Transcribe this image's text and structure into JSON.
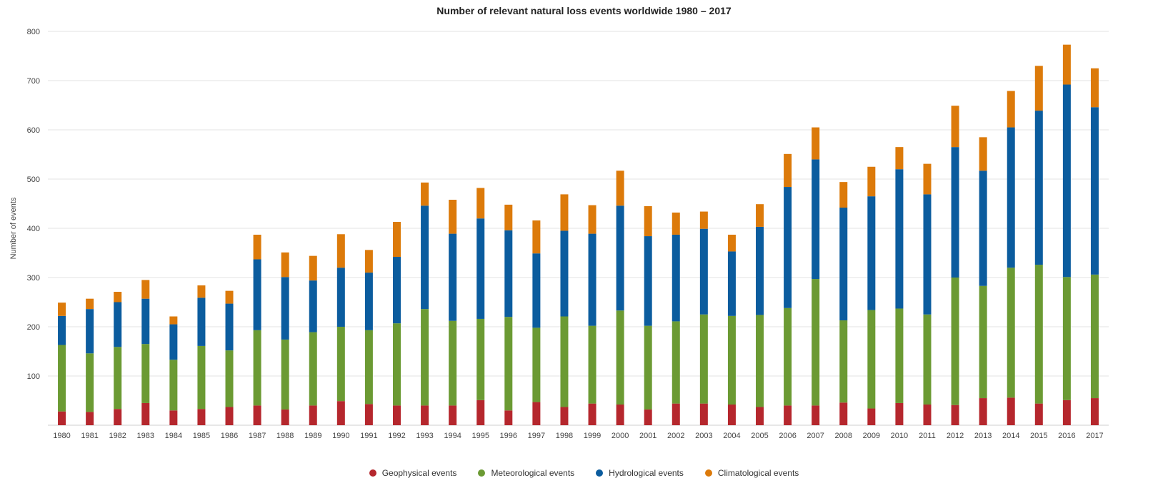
{
  "chart_data": {
    "type": "bar",
    "stacked": true,
    "title": "Number of relevant natural loss events worldwide 1980 – 2017",
    "xlabel": "",
    "ylabel": "Number of events",
    "ylim": [
      0,
      800
    ],
    "yticks": [
      100,
      200,
      300,
      400,
      500,
      600,
      700,
      800
    ],
    "grid": true,
    "legend_position": "bottom",
    "categories": [
      "1980",
      "1981",
      "1982",
      "1983",
      "1984",
      "1985",
      "1986",
      "1987",
      "1988",
      "1989",
      "1990",
      "1991",
      "1992",
      "1993",
      "1994",
      "1995",
      "1996",
      "1997",
      "1998",
      "1999",
      "2000",
      "2001",
      "2002",
      "2003",
      "2004",
      "2005",
      "2006",
      "2007",
      "2008",
      "2009",
      "2010",
      "2011",
      "2012",
      "2013",
      "2014",
      "2015",
      "2016",
      "2017"
    ],
    "series": [
      {
        "name": "Geophysical events",
        "color": "#b5272d",
        "values": [
          28,
          27,
          33,
          45,
          30,
          33,
          37,
          40,
          32,
          40,
          49,
          43,
          40,
          40,
          40,
          51,
          30,
          47,
          37,
          44,
          42,
          32,
          44,
          44,
          42,
          37,
          40,
          40,
          46,
          34,
          45,
          42,
          41,
          55,
          56,
          44,
          51,
          55
        ]
      },
      {
        "name": "Meteorological events",
        "color": "#6b9a33",
        "values": [
          135,
          119,
          126,
          120,
          103,
          128,
          115,
          153,
          142,
          149,
          151,
          150,
          167,
          196,
          172,
          165,
          190,
          151,
          184,
          158,
          191,
          170,
          167,
          181,
          180,
          187,
          198,
          257,
          167,
          200,
          192,
          183,
          259,
          228,
          264,
          282,
          250,
          251
        ]
      },
      {
        "name": "Hydrological events",
        "color": "#0b5c9e",
        "values": [
          59,
          90,
          91,
          92,
          72,
          98,
          95,
          144,
          127,
          105,
          120,
          117,
          135,
          210,
          177,
          204,
          176,
          151,
          174,
          187,
          213,
          182,
          176,
          174,
          131,
          179,
          246,
          243,
          229,
          231,
          283,
          244,
          265,
          234,
          285,
          313,
          391,
          340
        ]
      },
      {
        "name": "Climatological events",
        "color": "#dc7a0a",
        "values": [
          27,
          21,
          21,
          38,
          16,
          25,
          26,
          50,
          50,
          50,
          68,
          46,
          71,
          47,
          69,
          62,
          52,
          67,
          74,
          58,
          71,
          61,
          45,
          35,
          34,
          46,
          67,
          65,
          52,
          60,
          45,
          62,
          84,
          68,
          74,
          91,
          81,
          79
        ]
      }
    ]
  }
}
